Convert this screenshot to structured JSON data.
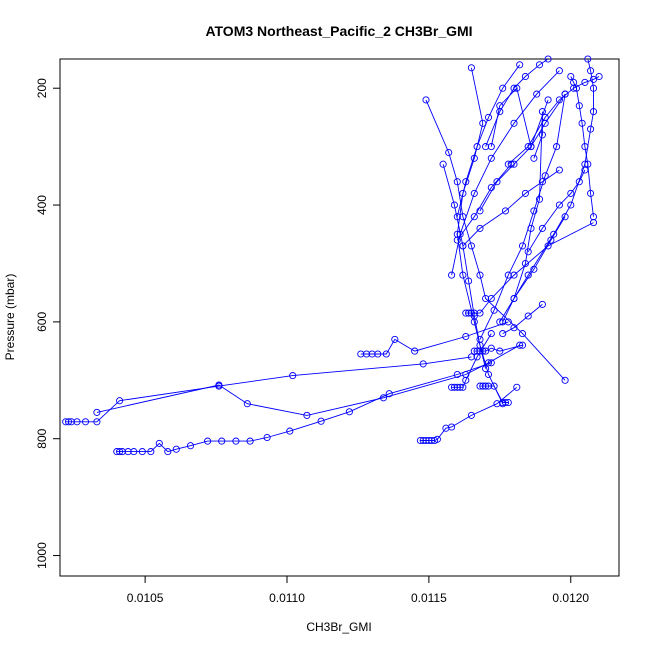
{
  "chart_data": {
    "type": "line",
    "title": "ATOM3 Northeast_Pacific_2 CH3Br_GMI",
    "xlabel": "CH3Br_GMI",
    "ylabel": "Pressure (mbar)",
    "xlim": [
      0.0102,
      0.01217
    ],
    "ylim": [
      1035,
      150
    ],
    "y_inverted": true,
    "grid": false,
    "x_ticks": [
      0.0105,
      0.011,
      0.0115,
      0.012
    ],
    "x_tick_labels": [
      "0.0105",
      "0.0110",
      "0.0115",
      "0.0120"
    ],
    "y_ticks": [
      200,
      400,
      600,
      800,
      1000
    ],
    "y_tick_labels": [
      "200",
      "400",
      "600",
      "800",
      "1000"
    ],
    "series_color": "#0000ff",
    "marker": "open-circle",
    "series": [
      {
        "x": [
          0.01022,
          0.01023,
          0.01024,
          0.01026,
          0.01029,
          0.01033,
          0.01041,
          0.01076,
          0.01102,
          0.01148,
          0.01165
        ],
        "y": [
          771,
          771,
          771,
          771,
          771,
          771,
          735,
          710,
          692,
          672,
          660
        ]
      },
      {
        "x": [
          0.01033,
          0.01076,
          0.01086,
          0.01107,
          0.01134,
          0.01163,
          0.01171,
          0.01182
        ],
        "y": [
          755,
          708,
          740,
          760,
          730,
          690,
          670,
          640
        ]
      },
      {
        "x": [
          0.0104,
          0.01041,
          0.01042,
          0.01044,
          0.01046,
          0.01049,
          0.01052,
          0.01055,
          0.01058,
          0.01061,
          0.01066,
          0.01072,
          0.01077,
          0.01082,
          0.01087,
          0.01093,
          0.01101,
          0.01112,
          0.01122,
          0.01136,
          0.0116,
          0.01172
        ],
        "y": [
          822,
          822,
          822,
          822,
          822,
          822,
          822,
          808,
          822,
          818,
          812,
          804,
          804,
          804,
          804,
          798,
          787,
          770,
          754,
          723,
          690,
          670
        ]
      },
      {
        "x": [
          0.01126,
          0.01128,
          0.0113,
          0.01132,
          0.01135,
          0.01138,
          0.01145,
          0.01163,
          0.01178
        ],
        "y": [
          655,
          655,
          655,
          655,
          655,
          630,
          650,
          625,
          600
        ]
      },
      {
        "x": [
          0.01147,
          0.01148,
          0.01149,
          0.0115,
          0.01151,
          0.01152,
          0.01153,
          0.01156,
          0.01158,
          0.01165,
          0.01174,
          0.01181
        ],
        "y": [
          803,
          803,
          803,
          803,
          803,
          803,
          801,
          782,
          780,
          760,
          740,
          712
        ]
      },
      {
        "x": [
          0.01158,
          0.01159,
          0.0116,
          0.01161,
          0.01162,
          0.01163,
          0.01167,
          0.01172
        ],
        "y": [
          712,
          712,
          712,
          712,
          712,
          700,
          660,
          620
        ]
      },
      {
        "x": [
          0.01168,
          0.01169,
          0.0117,
          0.01171,
          0.01173,
          0.01176,
          0.01177,
          0.01178
        ],
        "y": [
          710,
          710,
          710,
          710,
          710,
          738,
          738,
          738
        ]
      },
      {
        "x": [
          0.01166,
          0.01167,
          0.01168,
          0.01169,
          0.0117,
          0.01172,
          0.01175,
          0.01183
        ],
        "y": [
          650,
          650,
          650,
          650,
          650,
          645,
          650,
          640
        ]
      },
      {
        "x": [
          0.01163,
          0.01164,
          0.01165,
          0.01166,
          0.01168,
          0.01172,
          0.0118,
          0.01192,
          0.01208
        ],
        "y": [
          585,
          585,
          585,
          585,
          585,
          560,
          520,
          470,
          430
        ]
      },
      {
        "x": [
          0.01149,
          0.01157,
          0.0116,
          0.01162,
          0.01165,
          0.01168,
          0.0117,
          0.01183,
          0.01198
        ],
        "y": [
          220,
          310,
          360,
          420,
          470,
          520,
          560,
          620,
          700
        ]
      },
      {
        "x": [
          0.01155,
          0.01159,
          0.01162,
          0.01164,
          0.01166,
          0.01168,
          0.01171,
          0.01176
        ],
        "y": [
          330,
          400,
          470,
          530,
          590,
          640,
          690,
          740
        ]
      },
      {
        "x": [
          0.01165,
          0.01169,
          0.01166,
          0.01162,
          0.0116,
          0.01162,
          0.01166,
          0.0117
        ],
        "y": [
          165,
          260,
          320,
          380,
          450,
          520,
          600,
          680
        ]
      },
      {
        "x": [
          0.01178,
          0.01185,
          0.01191,
          0.01196,
          0.01201,
          0.01205,
          0.01208,
          0.0121
        ],
        "y": [
          330,
          300,
          250,
          220,
          200,
          190,
          185,
          180
        ]
      },
      {
        "x": [
          0.01187,
          0.0119,
          0.0119,
          0.01189,
          0.01186,
          0.01184,
          0.0118,
          0.01176
        ],
        "y": [
          320,
          280,
          240,
          390,
          440,
          500,
          560,
          600
        ]
      },
      {
        "x": [
          0.012,
          0.01201,
          0.01202,
          0.01203,
          0.01204,
          0.01205,
          0.01206,
          0.01207,
          0.01208
        ],
        "y": [
          180,
          190,
          200,
          230,
          260,
          300,
          330,
          380,
          420
        ]
      },
      {
        "x": [
          0.01206,
          0.01207,
          0.01208,
          0.01208,
          0.01207,
          0.01205,
          0.012,
          0.01194,
          0.01185,
          0.01175
        ],
        "y": [
          150,
          170,
          200,
          240,
          270,
          330,
          400,
          450,
          520,
          600
        ]
      },
      {
        "x": [
          0.01198,
          0.01195,
          0.01191,
          0.01187,
          0.01183,
          0.01178,
          0.01173,
          0.01168
        ],
        "y": [
          210,
          300,
          350,
          410,
          470,
          520,
          580,
          630
        ]
      },
      {
        "x": [
          0.0117,
          0.01175,
          0.0118,
          0.01184,
          0.01189,
          0.01192
        ],
        "y": [
          300,
          240,
          200,
          180,
          160,
          150
        ]
      },
      {
        "x": [
          0.0116,
          0.01163,
          0.01167,
          0.01171,
          0.01176,
          0.01182
        ],
        "y": [
          420,
          360,
          300,
          250,
          200,
          160
        ]
      },
      {
        "x": [
          0.01158,
          0.01161,
          0.01166,
          0.01172,
          0.0118,
          0.01188,
          0.01196
        ],
        "y": [
          520,
          450,
          380,
          320,
          260,
          210,
          170
        ]
      },
      {
        "x": [
          0.01172,
          0.01175,
          0.01181,
          0.01186,
          0.01192
        ],
        "y": [
          300,
          230,
          200,
          300,
          220
        ]
      },
      {
        "x": [
          0.0116,
          0.01166,
          0.01172,
          0.01179
        ],
        "y": [
          460,
          420,
          370,
          330
        ]
      },
      {
        "x": [
          0.01168,
          0.01174,
          0.0118,
          0.01186,
          0.01191,
          0.01198
        ],
        "y": [
          410,
          360,
          330,
          300,
          260,
          210
        ]
      },
      {
        "x": [
          0.01162,
          0.01168,
          0.01177,
          0.01184,
          0.0119,
          0.01196
        ],
        "y": [
          470,
          440,
          410,
          380,
          360,
          340
        ]
      },
      {
        "x": [
          0.01185,
          0.0119,
          0.01196,
          0.012,
          0.01203,
          0.01205
        ],
        "y": [
          480,
          440,
          400,
          380,
          360,
          340
        ]
      },
      {
        "x": [
          0.0118,
          0.01187,
          0.01193,
          0.01198
        ],
        "y": [
          560,
          510,
          460,
          420
        ]
      },
      {
        "x": [
          0.0119,
          0.01185,
          0.0118,
          0.01176
        ],
        "y": [
          570,
          590,
          610,
          620
        ]
      }
    ]
  }
}
